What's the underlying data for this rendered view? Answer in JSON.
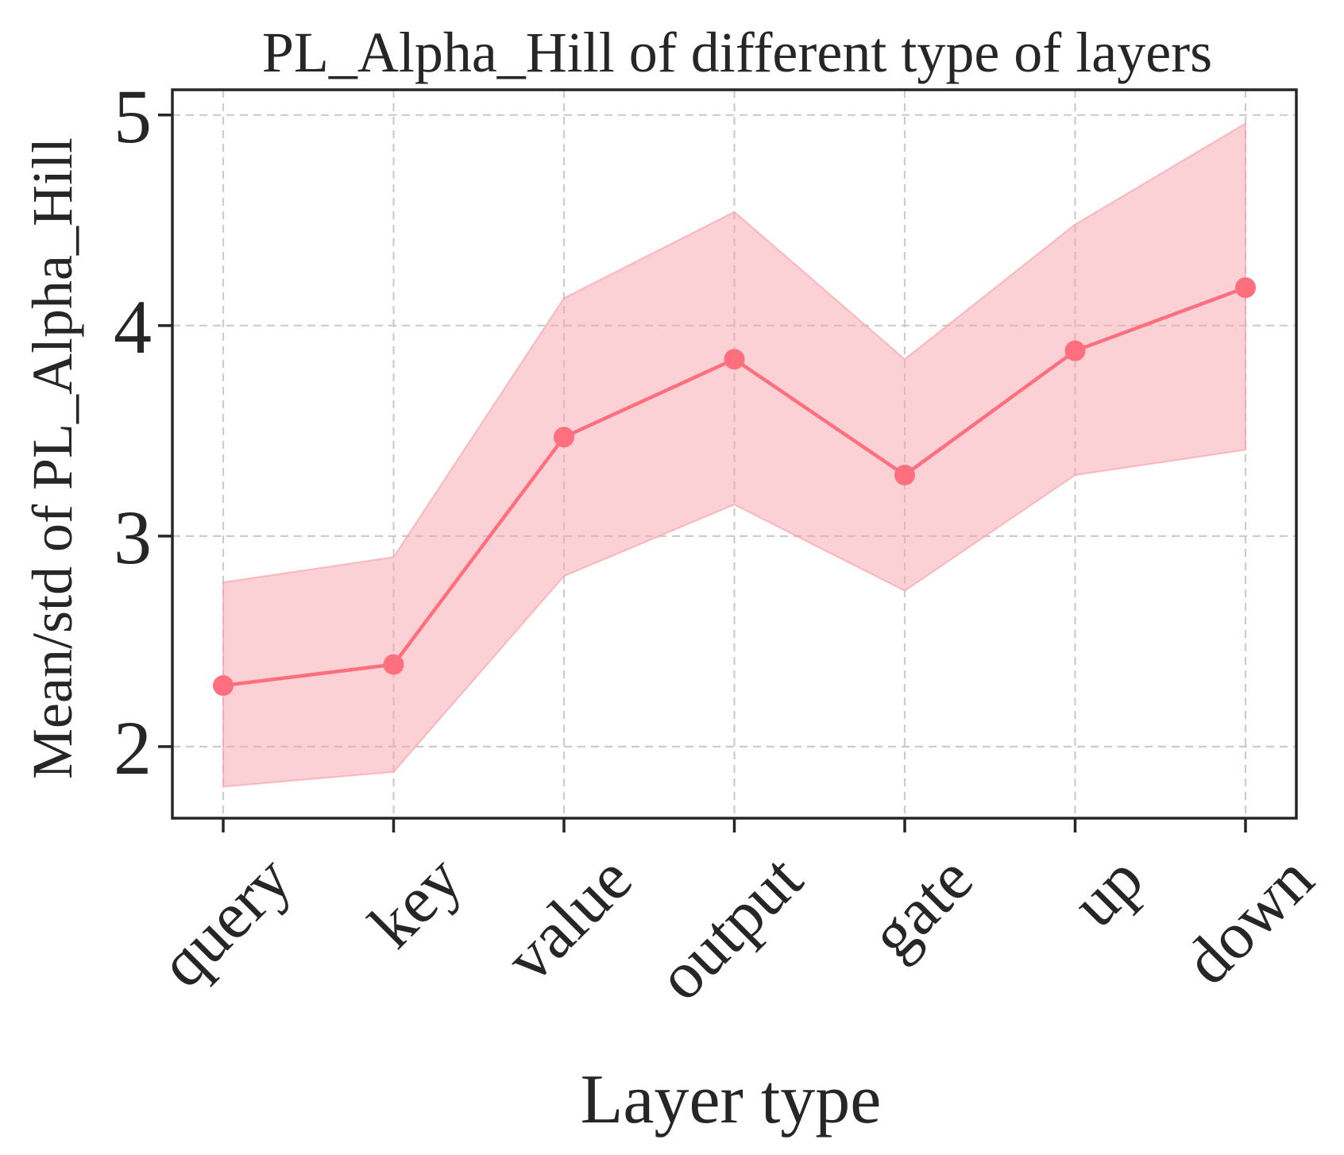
{
  "chart_data": {
    "type": "line",
    "title": "PL_Alpha_Hill of different type of layers",
    "xlabel": "Layer type",
    "ylabel": "Mean/std of PL_Alpha_Hill",
    "categories": [
      "query",
      "key",
      "value",
      "output",
      "gate",
      "up",
      "down"
    ],
    "series": [
      {
        "values": [
          2.29,
          2.39,
          3.47,
          3.84,
          3.29,
          3.88,
          4.18
        ],
        "upper": [
          2.78,
          2.9,
          4.13,
          4.54,
          3.84,
          4.48,
          4.96
        ],
        "lower": [
          1.81,
          1.88,
          2.81,
          3.15,
          2.74,
          3.29,
          3.41
        ]
      }
    ],
    "ylim": [
      1.66,
      5.12
    ],
    "yticks": [
      2,
      3,
      4,
      5
    ],
    "grid": true,
    "colors": {
      "line": "#ff6f7d",
      "band": "#f9a3ad",
      "grid": "#cccccc",
      "axes": "#262626"
    }
  }
}
